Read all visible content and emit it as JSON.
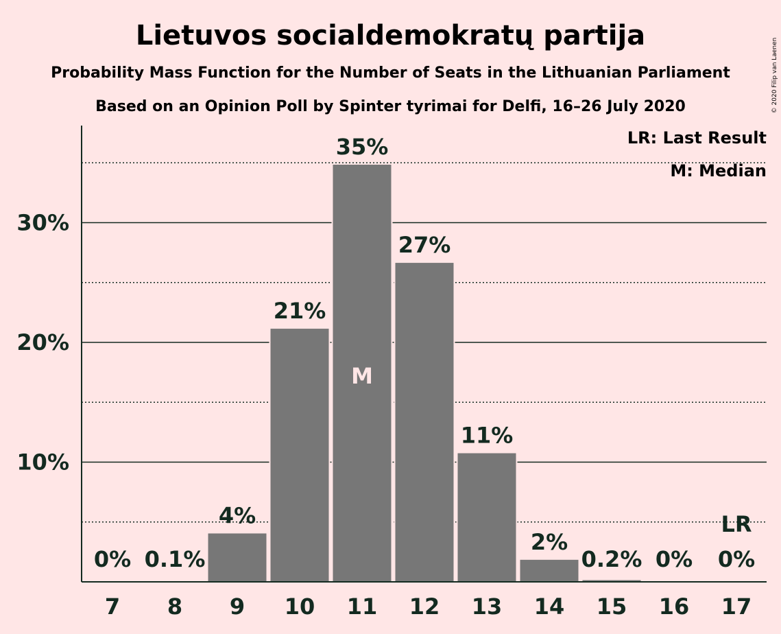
{
  "chart_data": {
    "type": "bar",
    "title": "Lietuvos socialdemokratų partija",
    "subtitle": "Probability Mass Function for the Number of Seats in the Lithuanian Parliament",
    "subtitle2": "Based on an Opinion Poll by Spinter tyrimai for Delfi, 16–26 July 2020",
    "copyright": "© 2020 Filip van Laenen",
    "categories": [
      "7",
      "8",
      "9",
      "10",
      "11",
      "12",
      "13",
      "14",
      "15",
      "16",
      "17"
    ],
    "values": [
      0,
      0.1,
      4.1,
      21.2,
      34.9,
      26.7,
      10.8,
      1.9,
      0.2,
      0,
      0
    ],
    "value_labels": [
      "0%",
      "0.1%",
      "4%",
      "21%",
      "35%",
      "27%",
      "11%",
      "2%",
      "0.2%",
      "0%",
      "0%"
    ],
    "ylim": [
      0,
      38
    ],
    "yticks_major": [
      10,
      20,
      30
    ],
    "ytick_labels": [
      "10%",
      "20%",
      "30%"
    ],
    "yticks_minor": [
      5,
      15,
      25,
      35
    ],
    "median_index": 4,
    "median_marker": "M",
    "last_result_index": 10,
    "last_result_marker": "LR",
    "legend": [
      "LR: Last Result",
      "M: Median"
    ],
    "legend_position": "top-right",
    "colors": {
      "background": "#FFE6E6",
      "bar": "#777777",
      "text": "#132A20",
      "median_text": "#FFE6E6"
    }
  }
}
